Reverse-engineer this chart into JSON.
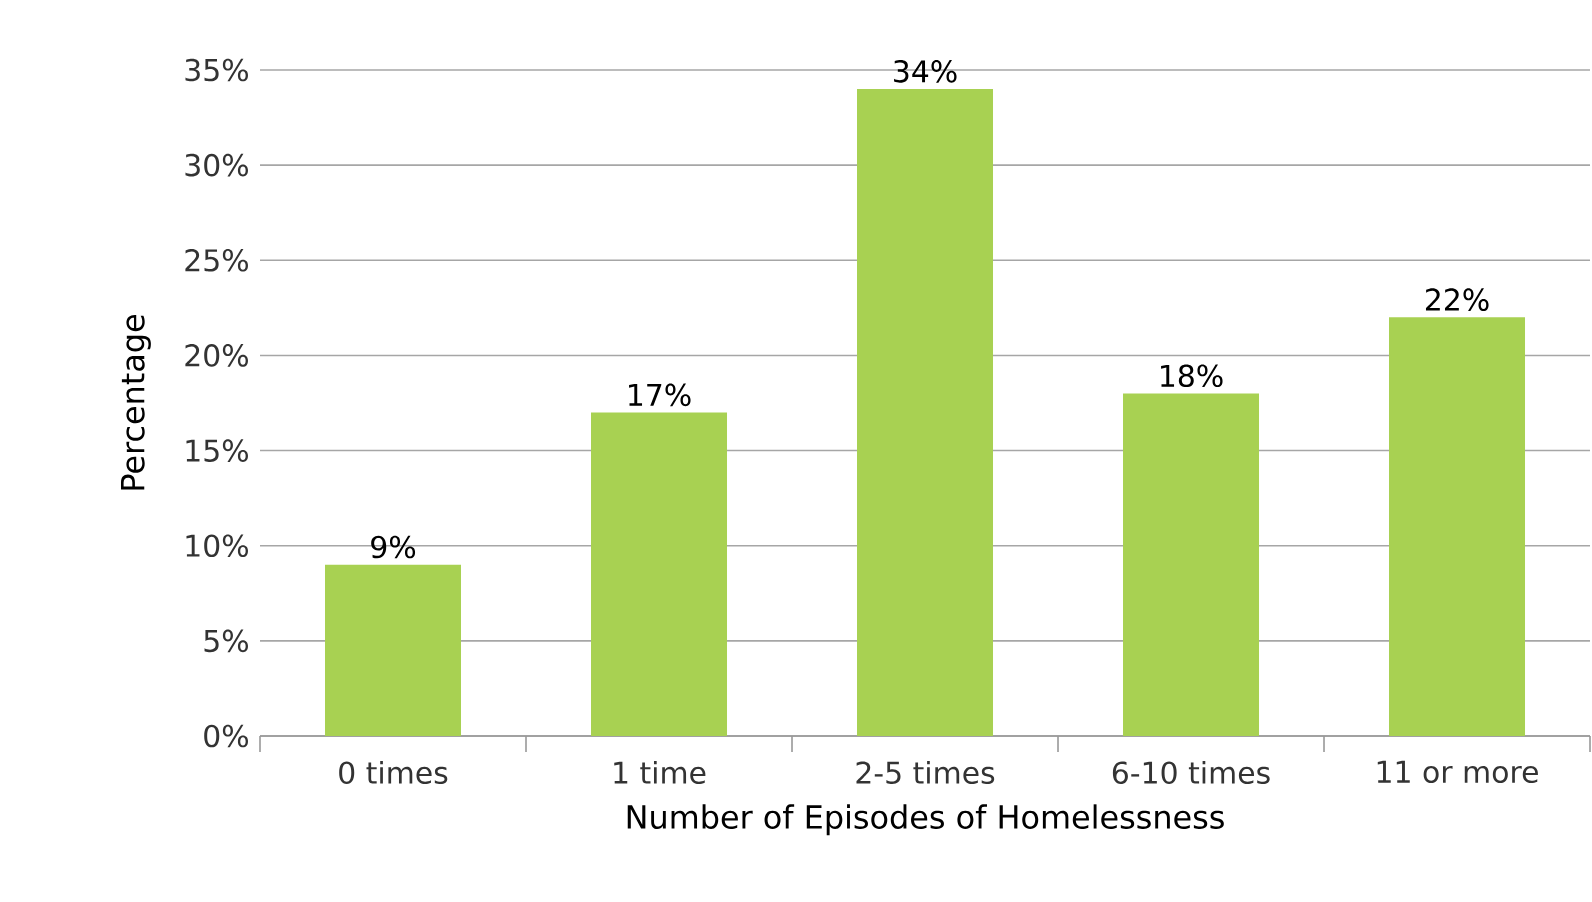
{
  "chart_data": {
    "type": "bar",
    "xlabel": "Number of Episodes of Homelessness",
    "ylabel": "Percentage",
    "categories": [
      "0 times",
      "1 time",
      "2-5 times",
      "6-10 times",
      "11 or more"
    ],
    "values": [
      9,
      17,
      34,
      18,
      22
    ],
    "value_labels": [
      "9%",
      "17%",
      "34%",
      "18%",
      "22%"
    ],
    "color": "#a8d152",
    "ylim": [
      0,
      35
    ],
    "yticks": [
      {
        "value": 0,
        "label": "0%"
      },
      {
        "value": 5,
        "label": "5%"
      },
      {
        "value": 10,
        "label": "10%"
      },
      {
        "value": 15,
        "label": "15%"
      },
      {
        "value": 20,
        "label": "20%"
      },
      {
        "value": 25,
        "label": "25%"
      },
      {
        "value": 30,
        "label": "30%"
      },
      {
        "value": 35,
        "label": "35%"
      }
    ],
    "grid": "y"
  }
}
